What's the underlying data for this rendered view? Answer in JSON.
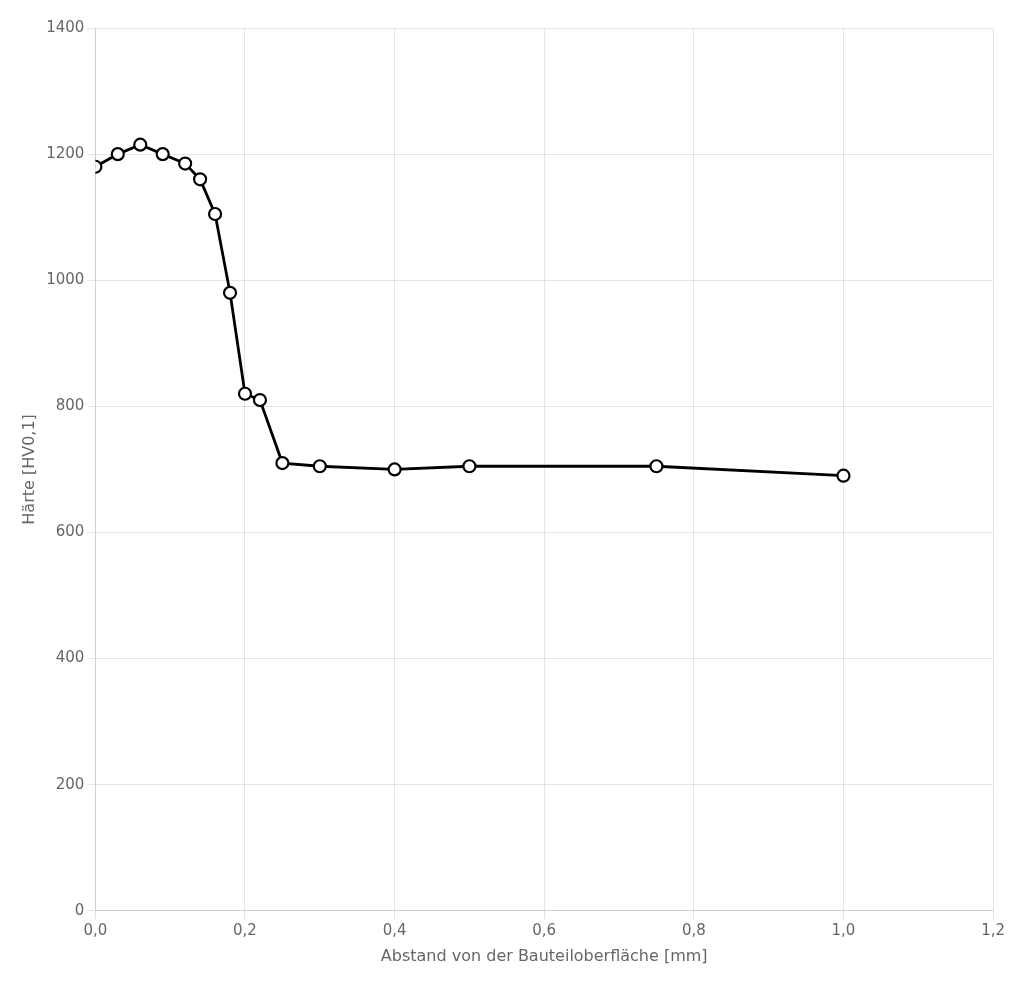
{
  "chart_data": {
    "type": "line",
    "x": [
      0.0,
      0.03,
      0.06,
      0.09,
      0.12,
      0.14,
      0.16,
      0.18,
      0.2,
      0.22,
      0.25,
      0.3,
      0.4,
      0.5,
      0.75,
      1.0
    ],
    "values": [
      1180,
      1200,
      1215,
      1200,
      1185,
      1160,
      1105,
      980,
      820,
      810,
      710,
      705,
      700,
      705,
      705,
      690
    ],
    "color": "#000000",
    "marker": "circle",
    "line_style": "solid",
    "xlabel": "Abstand von der Bauteiloberfläche [mm]",
    "ylabel": "Härte [HV0,1]",
    "xlim": [
      0.0,
      1.2
    ],
    "ylim": [
      0,
      1400
    ],
    "xticks": [
      {
        "value": 0.0,
        "label": "0,0"
      },
      {
        "value": 0.2,
        "label": "0,2"
      },
      {
        "value": 0.4,
        "label": "0,4"
      },
      {
        "value": 0.6,
        "label": "0,6"
      },
      {
        "value": 0.8,
        "label": "0,8"
      },
      {
        "value": 1.0,
        "label": "1,0"
      },
      {
        "value": 1.2,
        "label": "1,2"
      }
    ],
    "yticks": [
      0,
      200,
      400,
      600,
      800,
      1000,
      1200,
      1400
    ],
    "grid": true
  }
}
